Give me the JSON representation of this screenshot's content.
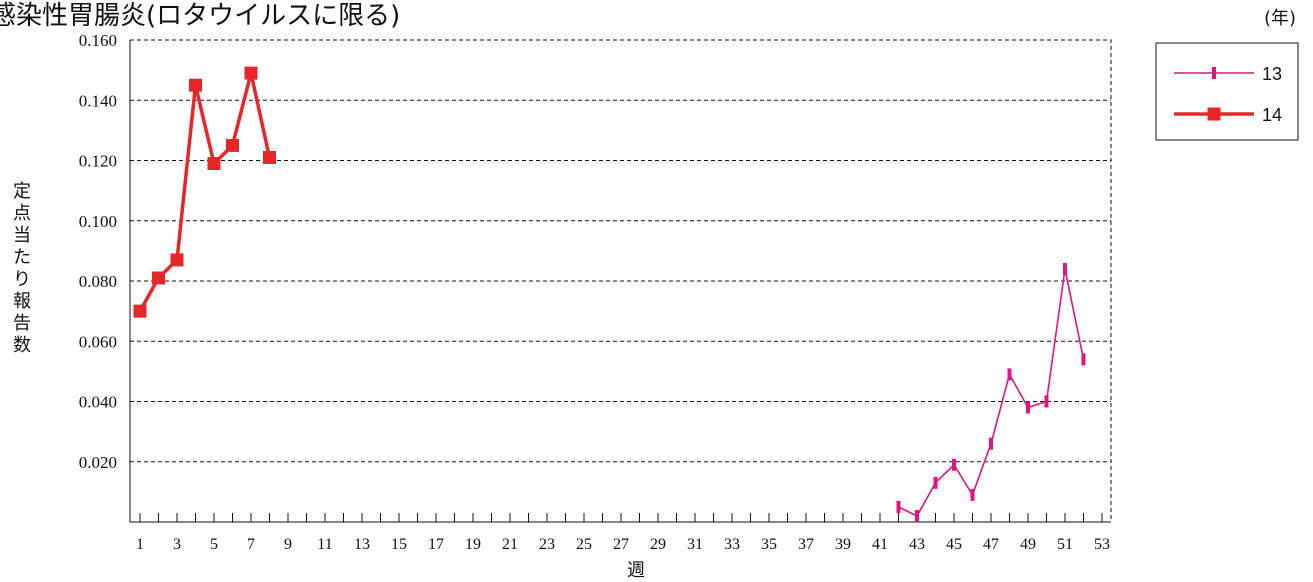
{
  "chart_data": {
    "type": "line",
    "title": "感染性胃腸炎(ロタウイルスに限る)",
    "unit_label": "(年)",
    "xlabel": "週",
    "ylabel": "定点当たり報告数",
    "ylim": [
      0,
      0.16
    ],
    "yticks": [
      "0.020",
      "0.040",
      "0.060",
      "0.080",
      "0.100",
      "0.120",
      "0.140",
      "0.160"
    ],
    "xlim": [
      1,
      53
    ],
    "xticks": [
      "1",
      "3",
      "5",
      "7",
      "9",
      "11",
      "13",
      "15",
      "17",
      "19",
      "21",
      "23",
      "25",
      "27",
      "29",
      "31",
      "33",
      "35",
      "37",
      "39",
      "41",
      "43",
      "45",
      "47",
      "49",
      "51",
      "53"
    ],
    "grid": true,
    "legend_position": "top-right",
    "series": [
      {
        "name": "13",
        "color": "#e0157f",
        "marker": "bar",
        "points": [
          [
            42,
            0.005
          ],
          [
            43,
            0.002
          ],
          [
            44,
            0.013
          ],
          [
            45,
            0.019
          ],
          [
            46,
            0.009
          ],
          [
            47,
            0.026
          ],
          [
            48,
            0.049
          ],
          [
            49,
            0.038
          ],
          [
            50,
            0.04
          ],
          [
            51,
            0.084
          ],
          [
            52,
            0.054
          ]
        ]
      },
      {
        "name": "14",
        "color": "#e8262a",
        "marker": "square",
        "points": [
          [
            1,
            0.07
          ],
          [
            2,
            0.081
          ],
          [
            3,
            0.087
          ],
          [
            4,
            0.145
          ],
          [
            5,
            0.119
          ],
          [
            6,
            0.125
          ],
          [
            7,
            0.149
          ],
          [
            8,
            0.121
          ]
        ]
      }
    ]
  }
}
